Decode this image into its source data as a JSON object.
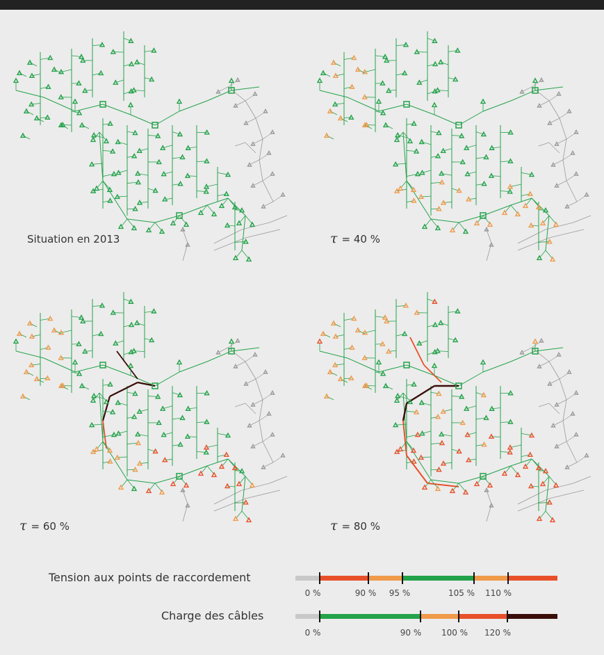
{
  "panels": [
    {
      "caption_prefix": "",
      "caption": "Situation en 2013",
      "mode": 0
    },
    {
      "caption_prefix": "τ",
      "caption": "= 40 %",
      "mode": 1
    },
    {
      "caption_prefix": "τ",
      "caption": "= 60 %",
      "mode": 2
    },
    {
      "caption_prefix": "τ",
      "caption": "= 80 %",
      "mode": 3
    }
  ],
  "legend": {
    "voltage": {
      "label": "Tension aux points de raccordement",
      "segments": [
        {
          "from": 0,
          "to": 90,
          "color": "#e8502a"
        },
        {
          "from": 90,
          "to": 95,
          "color": "#f09a4a"
        },
        {
          "from": 95,
          "to": 105,
          "color": "#23a24a"
        },
        {
          "from": 105,
          "to": 110,
          "color": "#f09a4a"
        },
        {
          "from": 110,
          "to": 130,
          "color": "#e8502a"
        }
      ],
      "ticks": [
        "0 %",
        "90 %",
        "95 %",
        "105 %",
        "110 %"
      ]
    },
    "cable_load": {
      "label": "Charge des câbles",
      "segments": [
        {
          "from": 0,
          "to": 90,
          "color": "#23a24a"
        },
        {
          "from": 90,
          "to": 100,
          "color": "#f09a4a"
        },
        {
          "from": 100,
          "to": 120,
          "color": "#e8502a"
        },
        {
          "from": 120,
          "to": 140,
          "color": "#3a0d08"
        }
      ],
      "ticks": [
        "0 %",
        "90 %",
        "100 %",
        "120 %"
      ]
    }
  },
  "colors": {
    "green": "#23a24a",
    "orange": "#f09a4a",
    "red": "#e8502a",
    "dark": "#3a0d08",
    "grey": "#9a9a9a",
    "background": "#ececec"
  }
}
